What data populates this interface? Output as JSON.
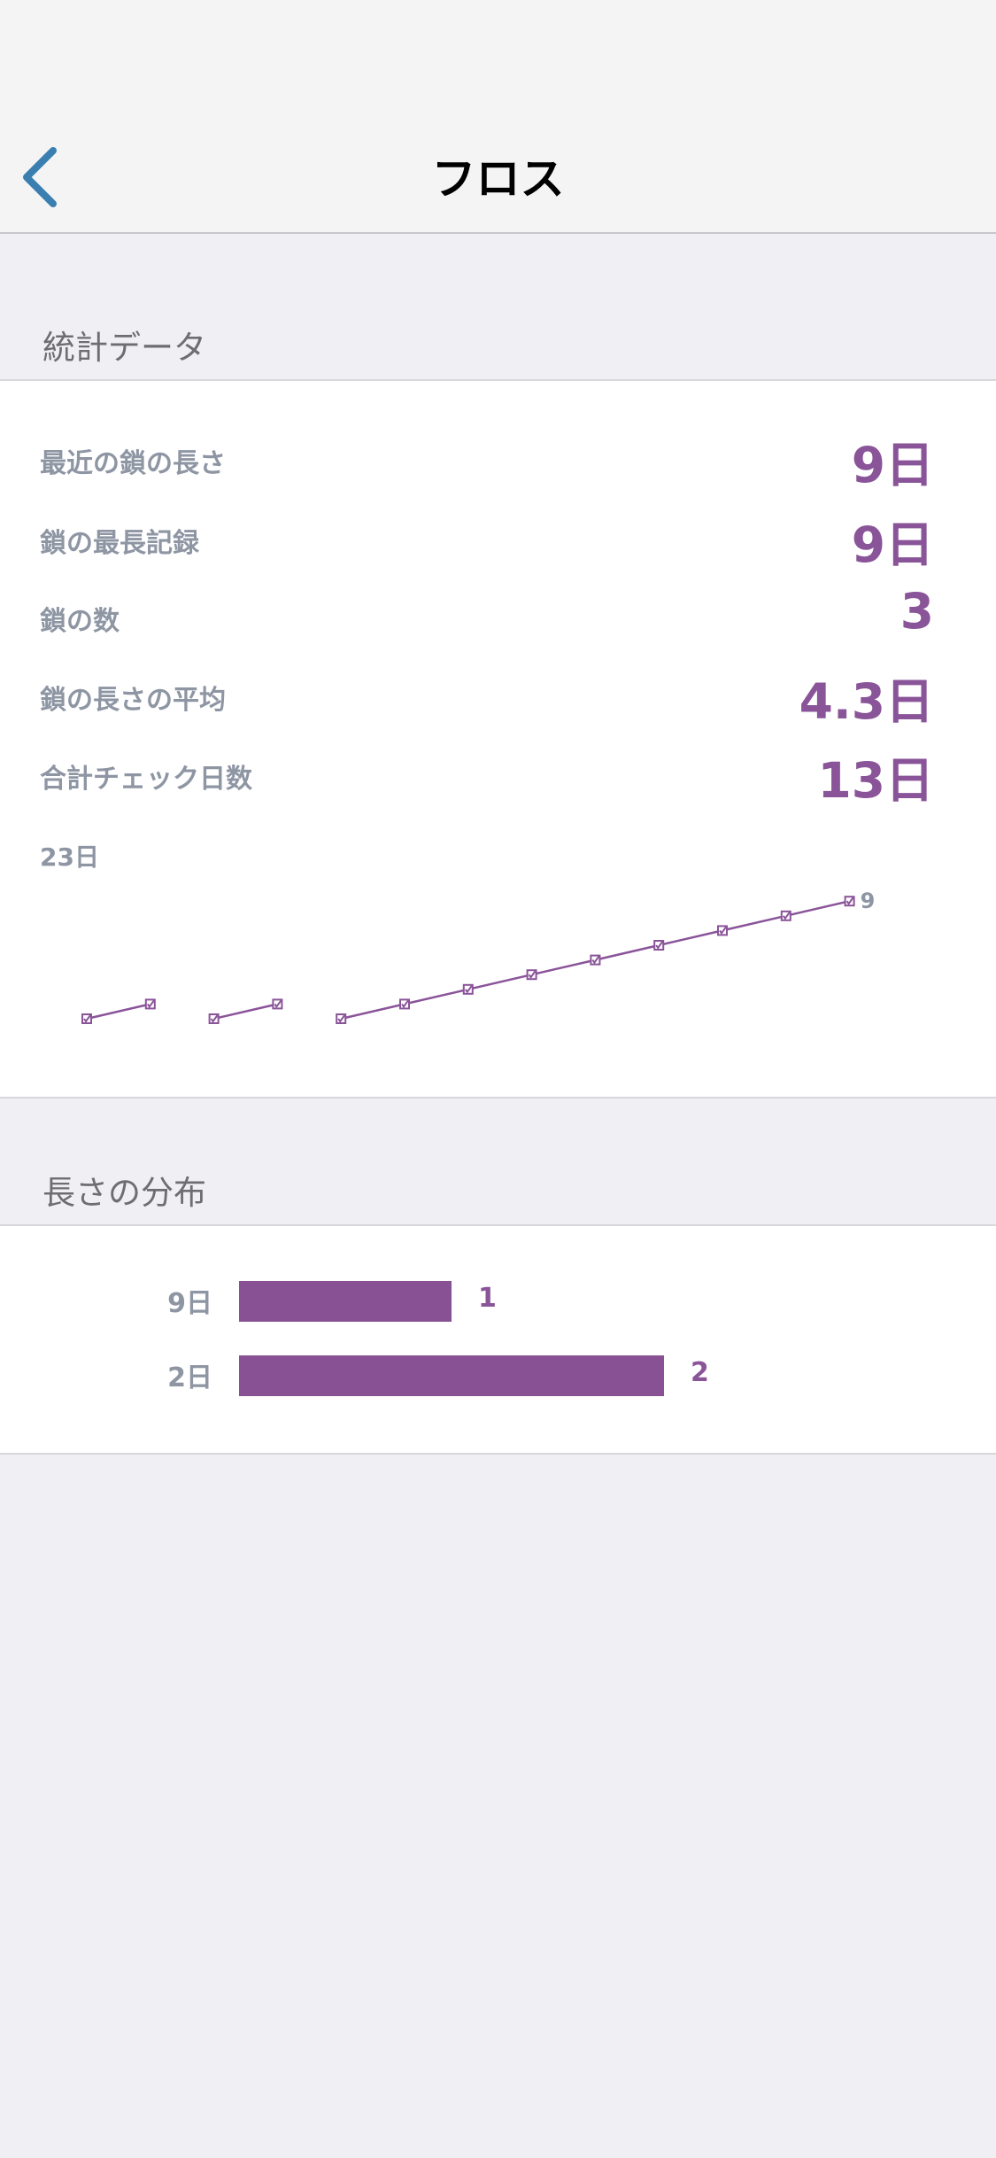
{
  "header": {
    "title": "フロス"
  },
  "stats_section": {
    "title": "統計データ"
  },
  "stats": [
    {
      "label": "最近の鎖の長さ",
      "value": "9日"
    },
    {
      "label": "鎖の最長記録",
      "value": "9日"
    },
    {
      "label": "鎖の数",
      "value": "3"
    },
    {
      "label": "鎖の長さの平均",
      "value": "4.3日"
    },
    {
      "label": "合計チェック日数",
      "value": "13日"
    }
  ],
  "chart_data": {
    "type": "line",
    "max_label": "23日",
    "end_label": "9",
    "color": "#8a5499",
    "series": [
      {
        "x": [
          1,
          2
        ],
        "values": [
          1,
          2
        ]
      },
      {
        "x": [
          3,
          4
        ],
        "values": [
          1,
          2
        ]
      },
      {
        "x": [
          5,
          6,
          7,
          8,
          9,
          10,
          11,
          12,
          13
        ],
        "values": [
          1,
          2,
          3,
          4,
          5,
          6,
          7,
          8,
          9
        ]
      }
    ]
  },
  "distribution_section": {
    "title": "長さの分布"
  },
  "distribution": [
    {
      "label": "9日",
      "count": 1,
      "count_label": "1"
    },
    {
      "label": "2日",
      "count": 2,
      "count_label": "2"
    }
  ],
  "colors": {
    "accent": "#8a5499",
    "back": "#3a7fb0"
  }
}
